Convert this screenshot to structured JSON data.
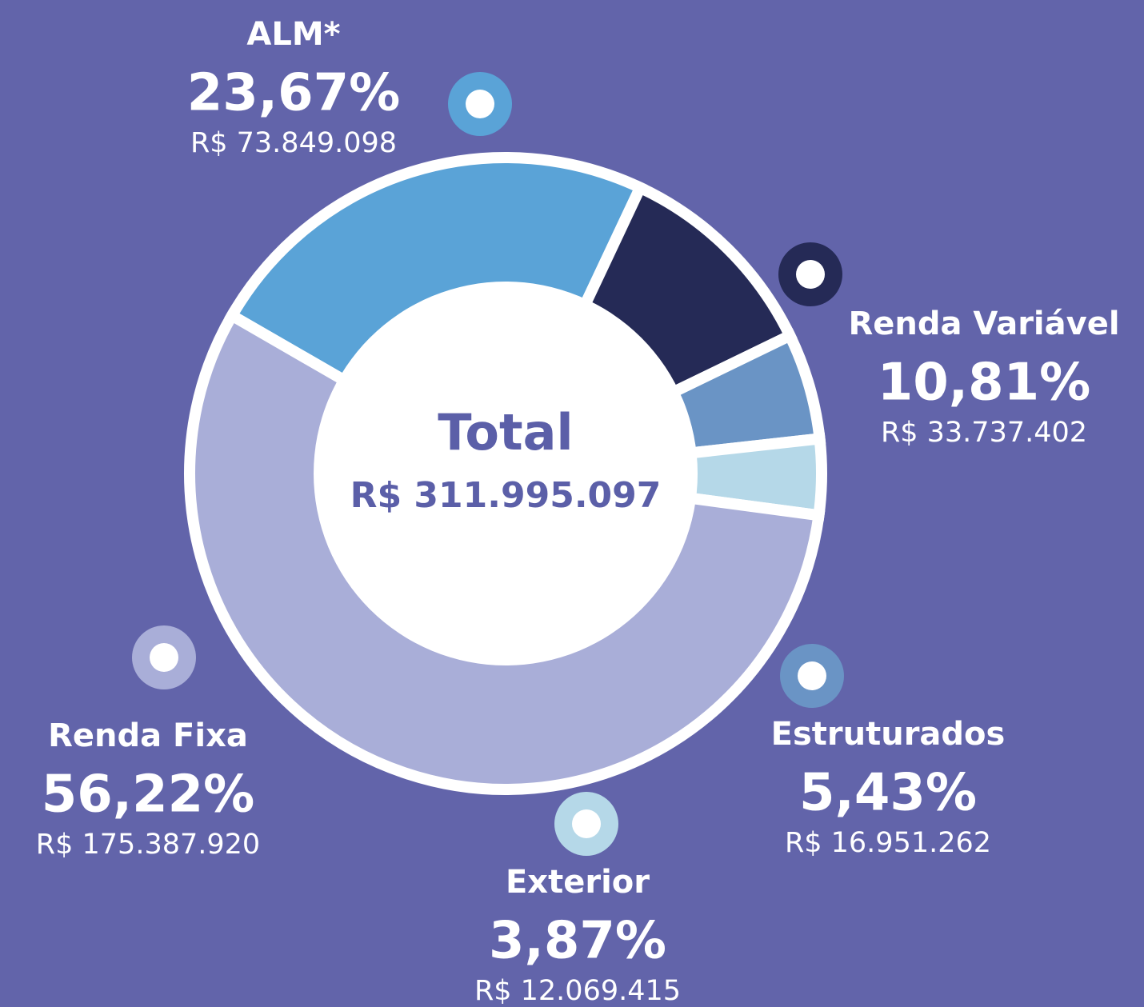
{
  "chart_data": {
    "type": "pie",
    "center_title": "Total",
    "center_value_label": "R$ 311.995.097",
    "categories": [
      "ALM*",
      "Renda Variável",
      "Estruturados",
      "Exterior",
      "Renda Fixa"
    ],
    "values": [
      23.67,
      10.81,
      5.43,
      3.87,
      56.22
    ],
    "value_labels": [
      "23,67%",
      "10,81%",
      "5,43%",
      "3,87%",
      "56,22%"
    ],
    "amount_labels": [
      "R$ 73.849.098",
      "R$ 33.737.402",
      "R$ 16.951.262",
      "R$ 12.069.415",
      "R$ 175.387.920"
    ],
    "colors": [
      "#5aa3d7",
      "#252a56",
      "#6a94c5",
      "#b5d8e8",
      "#a9aed8"
    ]
  }
}
